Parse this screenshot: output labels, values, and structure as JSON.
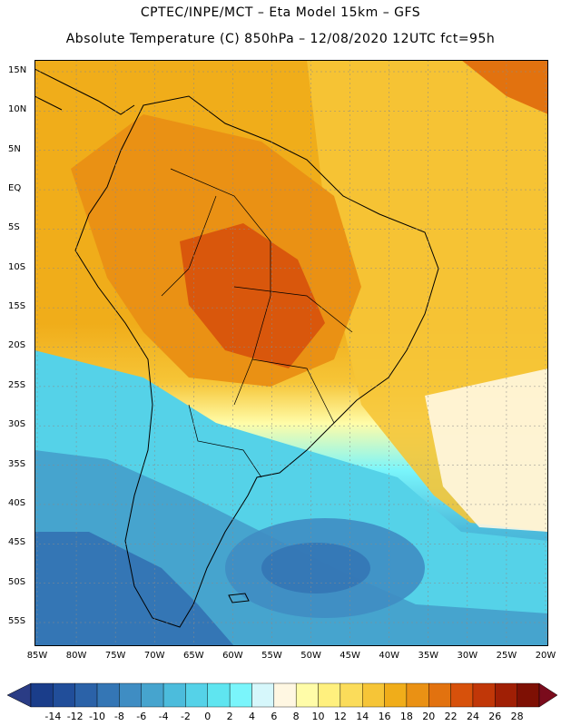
{
  "header": {
    "line1": "CPTEC/INPE/MCT –  Eta Model 15km – GFS",
    "line2": "Absolute Temperature (C) 850hPa – 12/08/2020 12UTC fct=95h"
  },
  "map": {
    "latitude_labels": [
      "15N",
      "10N",
      "5N",
      "EQ",
      "5S",
      "10S",
      "15S",
      "20S",
      "25S",
      "30S",
      "35S",
      "40S",
      "45S",
      "50S",
      "55S"
    ],
    "longitude_labels": [
      "85W",
      "80W",
      "75W",
      "70W",
      "65W",
      "60W",
      "55W",
      "50W",
      "45W",
      "40W",
      "35W",
      "30W",
      "25W",
      "20W"
    ]
  },
  "colorbar": {
    "labels": [
      "-14",
      "-12",
      "-10",
      "-8",
      "-6",
      "-4",
      "-2",
      "0",
      "2",
      "4",
      "6",
      "8",
      "10",
      "12",
      "14",
      "16",
      "18",
      "20",
      "22",
      "24",
      "26",
      "28"
    ],
    "colors": [
      "#1a3d8a",
      "#214e9a",
      "#2b62a8",
      "#3476b5",
      "#3f8dc3",
      "#46a4ce",
      "#4cbcdc",
      "#55d2e8",
      "#5fe5f0",
      "#7af5fb",
      "#d6f7fb",
      "#fff7e2",
      "#fffca8",
      "#fff07e",
      "#fbdc5a",
      "#f6c537",
      "#f0ad1a",
      "#ea9114",
      "#e2720f",
      "#d7510b",
      "#c13708",
      "#a01f05",
      "#7e1004"
    ],
    "left_cap_color": "#2a3c85",
    "right_cap_color": "#7a0b1c"
  }
}
